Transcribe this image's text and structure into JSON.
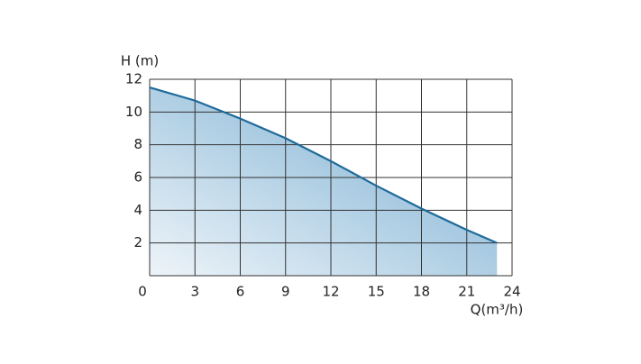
{
  "chart_data": {
    "type": "area",
    "y_label": "H (m)",
    "x_label": "Q(m³/h)",
    "x": [
      0,
      3,
      6,
      9,
      12,
      15,
      18,
      21,
      23
    ],
    "values": [
      11.5,
      10.7,
      9.6,
      8.4,
      7.0,
      5.5,
      4.1,
      2.8,
      2.0
    ],
    "color": "#1f6a9a",
    "xlim": [
      0,
      24
    ],
    "xticks": [
      0,
      3,
      6,
      9,
      12,
      15,
      18,
      21,
      24
    ],
    "ylim": [
      0,
      12
    ],
    "yticks": [
      2,
      4,
      6,
      8,
      10,
      12
    ],
    "grid": true
  }
}
